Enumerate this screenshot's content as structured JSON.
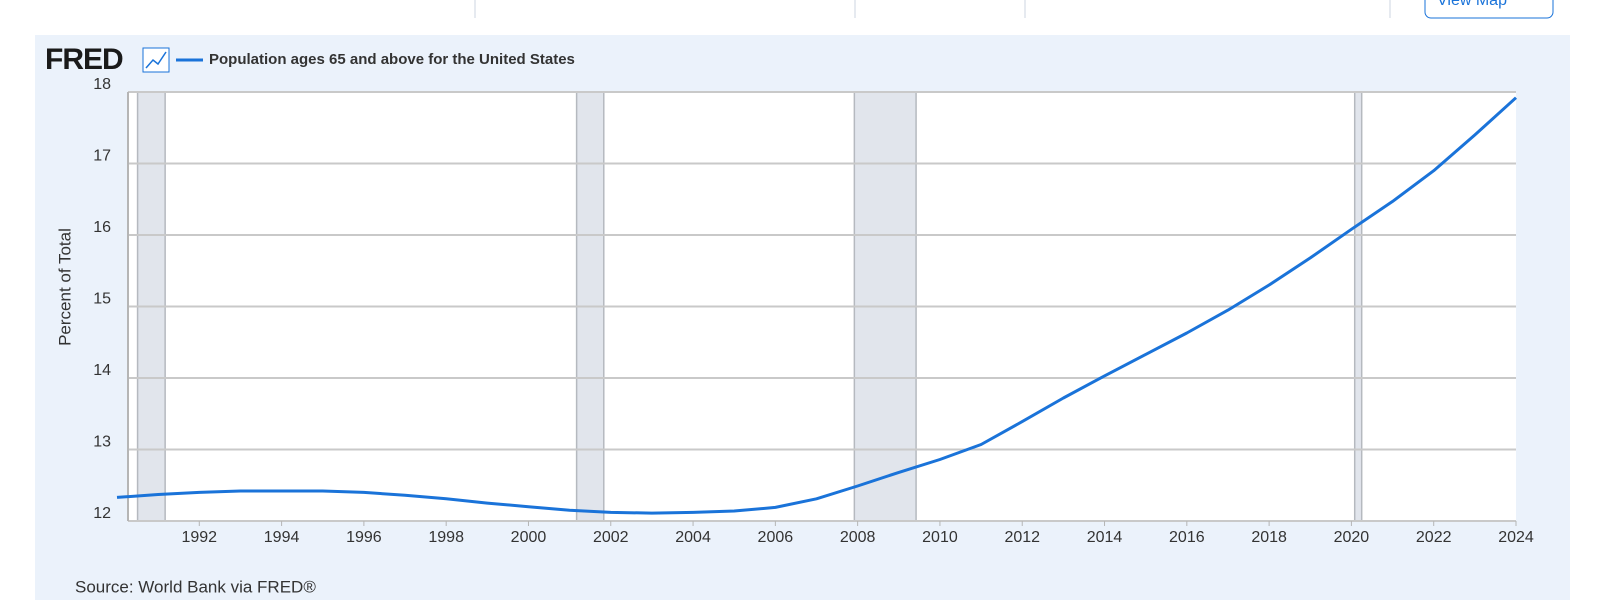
{
  "toolbar": {
    "button": "View Map"
  },
  "brand": "FRED",
  "chart_data": {
    "type": "line",
    "ylabel": "Percent of Total",
    "source": "Source: World Bank via FRED®",
    "x": [
      1990,
      1991,
      1992,
      1993,
      1994,
      1995,
      1996,
      1997,
      1998,
      1999,
      2000,
      2001,
      2002,
      2003,
      2004,
      2005,
      2006,
      2007,
      2008,
      2009,
      2010,
      2011,
      2012,
      2013,
      2014,
      2015,
      2016,
      2017,
      2018,
      2019,
      2020,
      2021,
      2022,
      2023,
      2024
    ],
    "series": [
      {
        "name": "Population ages 65 and above for the United States",
        "color": "#1a73d9",
        "values": [
          12.33,
          12.37,
          12.4,
          12.42,
          12.42,
          12.42,
          12.4,
          12.36,
          12.31,
          12.25,
          12.2,
          12.15,
          12.12,
          12.11,
          12.12,
          12.14,
          12.19,
          12.31,
          12.49,
          12.68,
          12.86,
          13.07,
          13.39,
          13.72,
          14.03,
          14.33,
          14.63,
          14.95,
          15.3,
          15.68,
          16.08,
          16.47,
          16.9,
          17.4,
          17.92
        ]
      }
    ],
    "recessions": [
      [
        1990.5,
        1991.17
      ],
      [
        2001.17,
        2001.83
      ],
      [
        2007.92,
        2009.42
      ],
      [
        2020.08,
        2020.25
      ]
    ],
    "xlim": [
      1990,
      2024
    ],
    "xticks": [
      1992,
      1994,
      1996,
      1998,
      2000,
      2002,
      2004,
      2006,
      2008,
      2010,
      2012,
      2014,
      2016,
      2018,
      2020,
      2022,
      2024
    ],
    "ylim": [
      12,
      18
    ],
    "yticks": [
      12,
      13,
      14,
      15,
      16,
      17,
      18
    ],
    "grid": true
  }
}
